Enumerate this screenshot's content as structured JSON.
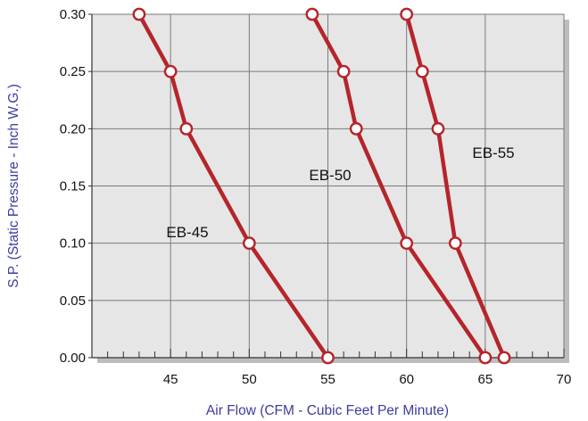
{
  "colors": {
    "plot_bg": "#e6e6e6",
    "grid": "#7a7a7a",
    "shadow": "#bdbdbd",
    "series": "#b5252b",
    "marker_fill": "#ffffff",
    "axis_title": "#3d3d9e"
  },
  "chart_data": {
    "type": "line",
    "title": "",
    "xlabel": "Air Flow (CFM - Cubic Feet Per Minute)",
    "ylabel": "S.P. (Static Pressure - Inch W.G.)",
    "xlim": [
      40,
      70
    ],
    "ylim": [
      0,
      0.3
    ],
    "x_ticks": [
      45,
      50,
      55,
      60,
      65,
      70
    ],
    "x_tick_labels": [
      "45",
      "50",
      "55",
      "60",
      "65",
      "70"
    ],
    "y_ticks": [
      0,
      0.05,
      0.1,
      0.15,
      0.2,
      0.25,
      0.3
    ],
    "y_tick_labels": [
      "0.00",
      "0.05",
      "0.10",
      "0.15",
      "0.20",
      "0.25",
      "0.30"
    ],
    "grid": true,
    "series": [
      {
        "name": "EB-45",
        "x": [
          43,
          45,
          46,
          50,
          55
        ],
        "y": [
          0.3,
          0.25,
          0.2,
          0.1,
          0.0
        ]
      },
      {
        "name": "EB-50",
        "x": [
          54,
          56,
          56.8,
          60,
          65
        ],
        "y": [
          0.3,
          0.25,
          0.2,
          0.1,
          0.0
        ]
      },
      {
        "name": "EB-55",
        "x": [
          60,
          61,
          62,
          63.1,
          66.2
        ],
        "y": [
          0.3,
          0.25,
          0.2,
          0.1,
          0.0
        ]
      }
    ]
  }
}
